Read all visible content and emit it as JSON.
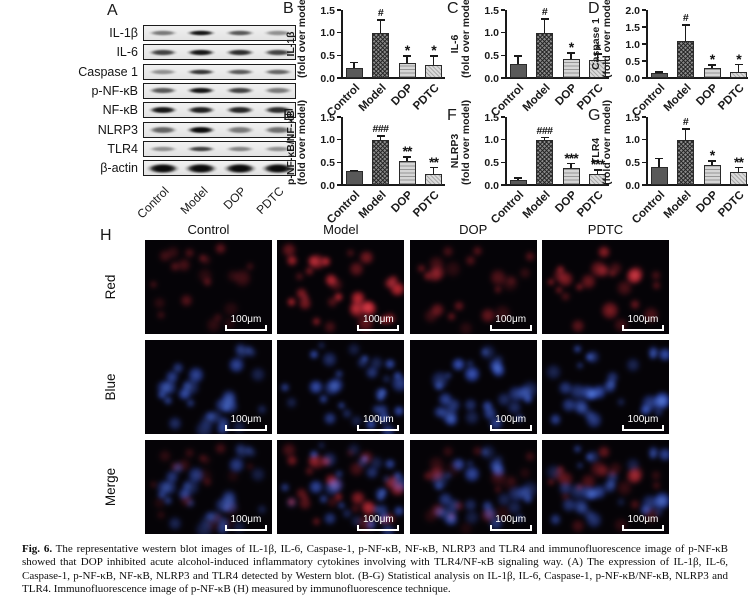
{
  "figure": {
    "caption_bold": "Fig. 6.",
    "caption_text": " The representative western blot images of IL-1β, IL-6, Caspase-1, p-NF-κB, NF-κB, NLRP3 and TLR4 and immunofluorescence image of p-NF-κB showed that DOP inhibited acute alcohol-induced inflammatory cytokines involving with TLR4/NF-κB signaling way. (A) The expression of IL-1β, IL-6, Caspase-1, p-NF-κB, NF-κB, NLRP3 and TLR4 detected by Western blot. (B-G) Statistical analysis on IL-1β, IL-6, Caspase-1, p-NF-κB/NF-κB, NLRP3 and TLR4. Immunofluorescence image of p-NF-κB (H) measured by immunofluorescence technique."
  },
  "western_blot": {
    "panel_label": "A",
    "lane_labels": [
      "Control",
      "Model",
      "DOP",
      "PDTC"
    ],
    "rows": [
      {
        "protein": "IL-1β",
        "bands": [
          0.5,
          0.95,
          0.65,
          0.4
        ],
        "thickness": 6
      },
      {
        "protein": "IL-6",
        "bands": [
          0.75,
          0.95,
          0.85,
          0.75
        ],
        "thickness": 7
      },
      {
        "protein": "Caspase 1",
        "bands": [
          0.4,
          0.8,
          0.65,
          0.6
        ],
        "thickness": 6
      },
      {
        "protein": "p-NF-κB",
        "bands": [
          0.65,
          0.95,
          0.75,
          0.5
        ],
        "thickness": 7
      },
      {
        "protein": "NF-κB",
        "bands": [
          0.95,
          0.9,
          0.88,
          0.85
        ],
        "thickness": 8
      },
      {
        "protein": "NLRP3",
        "bands": [
          0.6,
          1.0,
          0.5,
          0.55
        ],
        "thickness": 8
      },
      {
        "protein": "TLR4",
        "bands": [
          0.4,
          0.75,
          0.45,
          0.4
        ],
        "thickness": 6
      },
      {
        "protein": "β-actin",
        "bands": [
          1,
          1,
          1,
          1
        ],
        "thickness": 11
      }
    ]
  },
  "chart_data": [
    {
      "type": "bar",
      "panel": "B",
      "ylabel_top": "IL-1β",
      "ylabel_bottom": "(fold over model)",
      "categories": [
        "Control",
        "Model",
        "DOP",
        "PDTC"
      ],
      "values": [
        0.23,
        1.0,
        0.32,
        0.28
      ],
      "errors": [
        0.13,
        0.3,
        0.18,
        0.22
      ],
      "annotations": [
        "",
        "#",
        "*",
        "*"
      ],
      "yticks": [
        "0.0",
        "0.5",
        "1.0",
        "1.5"
      ],
      "ylim": [
        0,
        1.5
      ]
    },
    {
      "type": "bar",
      "panel": "C",
      "ylabel_top": "IL-6",
      "ylabel_bottom": "(fold over model)",
      "categories": [
        "Control",
        "Model",
        "DOP",
        "PDTC"
      ],
      "values": [
        0.3,
        1.0,
        0.42,
        0.4
      ],
      "errors": [
        0.2,
        0.32,
        0.15,
        0.15
      ],
      "annotations": [
        "",
        "#",
        "*",
        "*"
      ],
      "yticks": [
        "0.0",
        "0.5",
        "1.0",
        "1.5"
      ],
      "ylim": [
        0,
        1.5
      ]
    },
    {
      "type": "bar",
      "panel": "D",
      "ylabel_top": "Caspase 1",
      "ylabel_bottom": "(fold over model)",
      "categories": [
        "Control",
        "Model",
        "DOP",
        "PDTC"
      ],
      "values": [
        0.15,
        1.08,
        0.28,
        0.18
      ],
      "errors": [
        0.05,
        0.5,
        0.13,
        0.24
      ],
      "annotations": [
        "",
        "#",
        "*",
        "*"
      ],
      "yticks": [
        "0.0",
        "0.5",
        "1.0",
        "1.5",
        "2.0"
      ],
      "ylim": [
        0,
        2.0
      ]
    },
    {
      "type": "bar",
      "panel": "E",
      "ylabel_top": "p-NF-κB/NF-κB",
      "ylabel_bottom": "(fold over model)",
      "categories": [
        "Control",
        "Model",
        "DOP",
        "PDTC"
      ],
      "values": [
        0.3,
        1.0,
        0.53,
        0.25
      ],
      "errors": [
        0.04,
        0.1,
        0.1,
        0.15
      ],
      "annotations": [
        "",
        "###",
        "**",
        "**"
      ],
      "yticks": [
        "0.0",
        "0.5",
        "1.0",
        "1.5"
      ],
      "ylim": [
        0,
        1.5
      ]
    },
    {
      "type": "bar",
      "panel": "F",
      "ylabel_top": "NLRP3",
      "ylabel_bottom": "(fold over model)",
      "categories": [
        "Control",
        "Model",
        "DOP",
        "PDTC"
      ],
      "values": [
        0.12,
        1.0,
        0.37,
        0.25
      ],
      "errors": [
        0.05,
        0.06,
        0.12,
        0.1
      ],
      "annotations": [
        "",
        "###",
        "***",
        "***"
      ],
      "yticks": [
        "0.0",
        "0.5",
        "1.0",
        "1.5"
      ],
      "ylim": [
        0,
        1.5
      ]
    },
    {
      "type": "bar",
      "panel": "G",
      "ylabel_top": "TLR4",
      "ylabel_bottom": "(fold over model)",
      "categories": [
        "Control",
        "Model",
        "DOP",
        "PDTC"
      ],
      "values": [
        0.4,
        1.0,
        0.45,
        0.28
      ],
      "errors": [
        0.2,
        0.25,
        0.1,
        0.12
      ],
      "annotations": [
        "",
        "#",
        "*",
        "**"
      ],
      "yticks": [
        "0.0",
        "0.5",
        "1.0",
        "1.5"
      ],
      "ylim": [
        0,
        1.5
      ]
    }
  ],
  "immunofluorescence": {
    "panel_label": "H",
    "column_headers": [
      "Control",
      "Model",
      "DOP",
      "PDTC"
    ],
    "scalebar_label": "100μm",
    "rows": [
      {
        "label": "Red",
        "channel": "red",
        "density": [
          0.5,
          1.0,
          0.55,
          0.65
        ],
        "brightness": [
          0.5,
          1.0,
          0.55,
          0.75
        ]
      },
      {
        "label": "Blue",
        "channel": "blue",
        "density": [
          0.95,
          1.0,
          0.8,
          0.85
        ],
        "brightness": [
          0.85,
          0.9,
          0.9,
          0.9
        ]
      },
      {
        "label": "Merge",
        "channel": "merge",
        "density": [
          0.95,
          1.0,
          0.8,
          0.85
        ],
        "brightness": [
          0.8,
          0.9,
          0.85,
          0.85
        ]
      }
    ]
  },
  "colors": {
    "red_channel": "#d42c32",
    "blue_channel": "#2b59d6",
    "axis": "#1a1a1a"
  }
}
